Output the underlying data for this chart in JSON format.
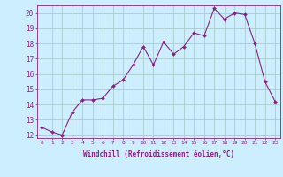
{
  "x": [
    0,
    1,
    2,
    3,
    4,
    5,
    6,
    7,
    8,
    9,
    10,
    11,
    12,
    13,
    14,
    15,
    16,
    17,
    18,
    19,
    20,
    21,
    22,
    23
  ],
  "y": [
    12.5,
    12.2,
    12.0,
    13.5,
    14.3,
    14.3,
    14.4,
    15.2,
    15.6,
    16.6,
    17.8,
    16.6,
    18.1,
    17.3,
    17.8,
    18.7,
    18.5,
    20.3,
    19.6,
    20.0,
    19.9,
    18.0,
    15.5,
    14.2
  ],
  "xlabel": "Windchill (Refroidissement éolien,°C)",
  "bg_color": "#cceeff",
  "grid_color": "#aacccc",
  "line_color": "#882288",
  "marker_color": "#882288",
  "text_color": "#882288",
  "ymin": 12,
  "ymax": 20,
  "xmin": 0,
  "xmax": 23,
  "yticks": [
    12,
    13,
    14,
    15,
    16,
    17,
    18,
    19,
    20
  ],
  "xticks": [
    0,
    1,
    2,
    3,
    4,
    5,
    6,
    7,
    8,
    9,
    10,
    11,
    12,
    13,
    14,
    15,
    16,
    17,
    18,
    19,
    20,
    21,
    22,
    23
  ]
}
